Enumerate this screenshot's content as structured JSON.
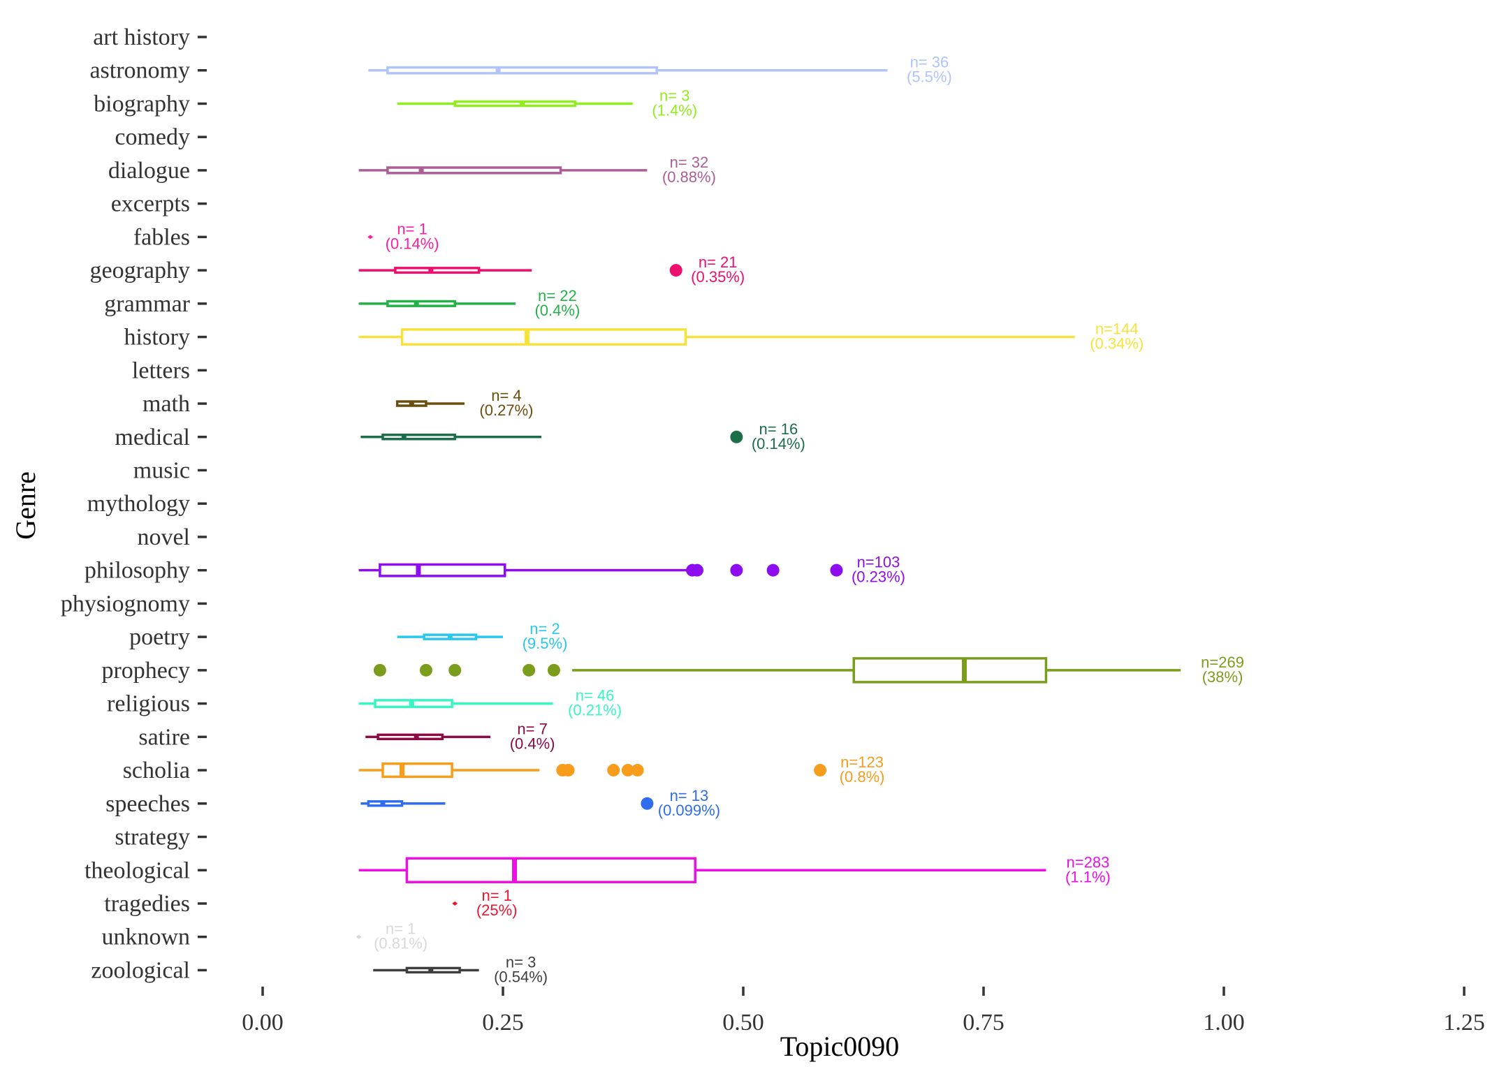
{
  "chart_data": {
    "type": "boxplot",
    "orientation": "horizontal",
    "xlabel": "Topic0090",
    "ylabel": "Genre",
    "xlim": [
      0,
      1.25
    ],
    "x_ticks": [
      0,
      0.25,
      0.5,
      0.75,
      1.0,
      1.25
    ],
    "x_tick_labels": [
      "0.00",
      "0.25",
      "0.50",
      "0.75",
      "1.00",
      "1.25"
    ],
    "grid": false,
    "legend": "none",
    "categories": [
      "art history",
      "astronomy",
      "biography",
      "comedy",
      "dialogue",
      "excerpts",
      "fables",
      "geography",
      "grammar",
      "history",
      "letters",
      "math",
      "medical",
      "music",
      "mythology",
      "novel",
      "philosophy",
      "physiognomy",
      "poetry",
      "prophecy",
      "religious",
      "satire",
      "scholia",
      "speeches",
      "strategy",
      "theological",
      "tragedies",
      "unknown",
      "zoological"
    ],
    "boxes": [
      {
        "genre": "astronomy",
        "color": "#b0c4fb",
        "whisker_low": 0.11,
        "q1": 0.13,
        "median": 0.245,
        "q3": 0.41,
        "whisker_high": 0.65,
        "outliers": [],
        "label_n": "n= 36",
        "label_pct": "(5.5%)"
      },
      {
        "genre": "biography",
        "color": "#90ee1c",
        "whisker_low": 0.14,
        "q1": 0.2,
        "median": 0.27,
        "q3": 0.325,
        "whisker_high": 0.385,
        "outliers": [],
        "label_n": "n=  3",
        "label_pct": "(1.4%)"
      },
      {
        "genre": "dialogue",
        "color": "#aa5f96",
        "whisker_low": 0.1,
        "q1": 0.13,
        "median": 0.165,
        "q3": 0.31,
        "whisker_high": 0.4,
        "outliers": [],
        "label_n": "n= 32",
        "label_pct": "(0.88%)"
      },
      {
        "genre": "fables",
        "color": "#ff1ea0",
        "whisker_low": 0.112,
        "q1": 0.112,
        "median": 0.112,
        "q3": 0.112,
        "whisker_high": 0.112,
        "outliers": [],
        "label_n": "n=  1",
        "label_pct": "(0.14%)"
      },
      {
        "genre": "geography",
        "color": "#ee0e6e",
        "whisker_low": 0.1,
        "q1": 0.138,
        "median": 0.175,
        "q3": 0.225,
        "whisker_high": 0.28,
        "outliers": [
          0.43
        ],
        "label_n": "n= 21",
        "label_pct": "(0.35%)"
      },
      {
        "genre": "grammar",
        "color": "#23b248",
        "whisker_low": 0.1,
        "q1": 0.13,
        "median": 0.16,
        "q3": 0.2,
        "whisker_high": 0.263,
        "outliers": [],
        "label_n": "n= 22",
        "label_pct": "(0.4%)"
      },
      {
        "genre": "history",
        "color": "#f8e23a",
        "whisker_low": 0.1,
        "q1": 0.145,
        "median": 0.275,
        "q3": 0.44,
        "whisker_high": 0.845,
        "outliers": [],
        "label_n": "n=144",
        "label_pct": "(0.34%)"
      },
      {
        "genre": "math",
        "color": "#6b4d0c",
        "whisker_low": 0.14,
        "q1": 0.14,
        "median": 0.155,
        "q3": 0.17,
        "whisker_high": 0.21,
        "outliers": [],
        "label_n": "n=  4",
        "label_pct": "(0.27%)"
      },
      {
        "genre": "medical",
        "color": "#1c6e49",
        "whisker_low": 0.102,
        "q1": 0.125,
        "median": 0.147,
        "q3": 0.2,
        "whisker_high": 0.29,
        "outliers": [
          0.493
        ],
        "label_n": "n= 16",
        "label_pct": "(0.14%)"
      },
      {
        "genre": "philosophy",
        "color": "#8d0df0",
        "whisker_low": 0.1,
        "q1": 0.122,
        "median": 0.162,
        "q3": 0.252,
        "whisker_high": 0.445,
        "outliers": [
          0.447,
          0.452,
          0.493,
          0.531,
          0.597
        ],
        "label_n": "n=103",
        "label_pct": "(0.23%)"
      },
      {
        "genre": "poetry",
        "color": "#28c8ee",
        "whisker_low": 0.14,
        "q1": 0.168,
        "median": 0.195,
        "q3": 0.222,
        "whisker_high": 0.25,
        "outliers": [],
        "label_n": "n=  2",
        "label_pct": "(9.5%)"
      },
      {
        "genre": "prophecy",
        "color": "#7a9e1c",
        "whisker_low": 0.322,
        "q1": 0.615,
        "median": 0.73,
        "q3": 0.815,
        "whisker_high": 0.955,
        "outliers": [
          0.122,
          0.17,
          0.2,
          0.277,
          0.303
        ],
        "label_n": "n=269",
        "label_pct": "(38%)"
      },
      {
        "genre": "religious",
        "color": "#38f5c4",
        "whisker_low": 0.1,
        "q1": 0.117,
        "median": 0.155,
        "q3": 0.197,
        "whisker_high": 0.302,
        "outliers": [],
        "label_n": "n= 46",
        "label_pct": "(0.21%)"
      },
      {
        "genre": "satire",
        "color": "#8c0a45",
        "whisker_low": 0.107,
        "q1": 0.12,
        "median": 0.16,
        "q3": 0.187,
        "whisker_high": 0.237,
        "outliers": [],
        "label_n": "n=  7",
        "label_pct": "(0.4%)"
      },
      {
        "genre": "scholia",
        "color": "#f89c1c",
        "whisker_low": 0.1,
        "q1": 0.125,
        "median": 0.145,
        "q3": 0.197,
        "whisker_high": 0.288,
        "outliers": [
          0.312,
          0.318,
          0.365,
          0.38,
          0.39,
          0.58
        ],
        "label_n": "n=123",
        "label_pct": "(0.8%)"
      },
      {
        "genre": "speeches",
        "color": "#2e6cf0",
        "whisker_low": 0.102,
        "q1": 0.11,
        "median": 0.125,
        "q3": 0.145,
        "whisker_high": 0.19,
        "outliers": [
          0.4
        ],
        "label_n": "n= 13",
        "label_pct": "(0.099%)"
      },
      {
        "genre": "theological",
        "color": "#ee10e2",
        "whisker_low": 0.1,
        "q1": 0.15,
        "median": 0.262,
        "q3": 0.45,
        "whisker_high": 0.815,
        "outliers": [],
        "label_n": "n=283",
        "label_pct": "(1.1%)"
      },
      {
        "genre": "tragedies",
        "color": "#ee1530",
        "whisker_low": 0.2,
        "q1": 0.2,
        "median": 0.2,
        "q3": 0.2,
        "whisker_high": 0.2,
        "outliers": [],
        "label_n": "n=  1",
        "label_pct": "(25%)"
      },
      {
        "genre": "unknown",
        "color": "#d8d8d8",
        "whisker_low": 0.1,
        "q1": 0.1,
        "median": 0.1,
        "q3": 0.1,
        "whisker_high": 0.1,
        "outliers": [],
        "label_n": "n=  1",
        "label_pct": "(0.81%)"
      },
      {
        "genre": "zoological",
        "color": "#3e3e3e",
        "whisker_low": 0.115,
        "q1": 0.15,
        "median": 0.175,
        "q3": 0.205,
        "whisker_high": 0.225,
        "outliers": [],
        "label_n": "n=  3",
        "label_pct": "(0.54%)"
      }
    ]
  }
}
